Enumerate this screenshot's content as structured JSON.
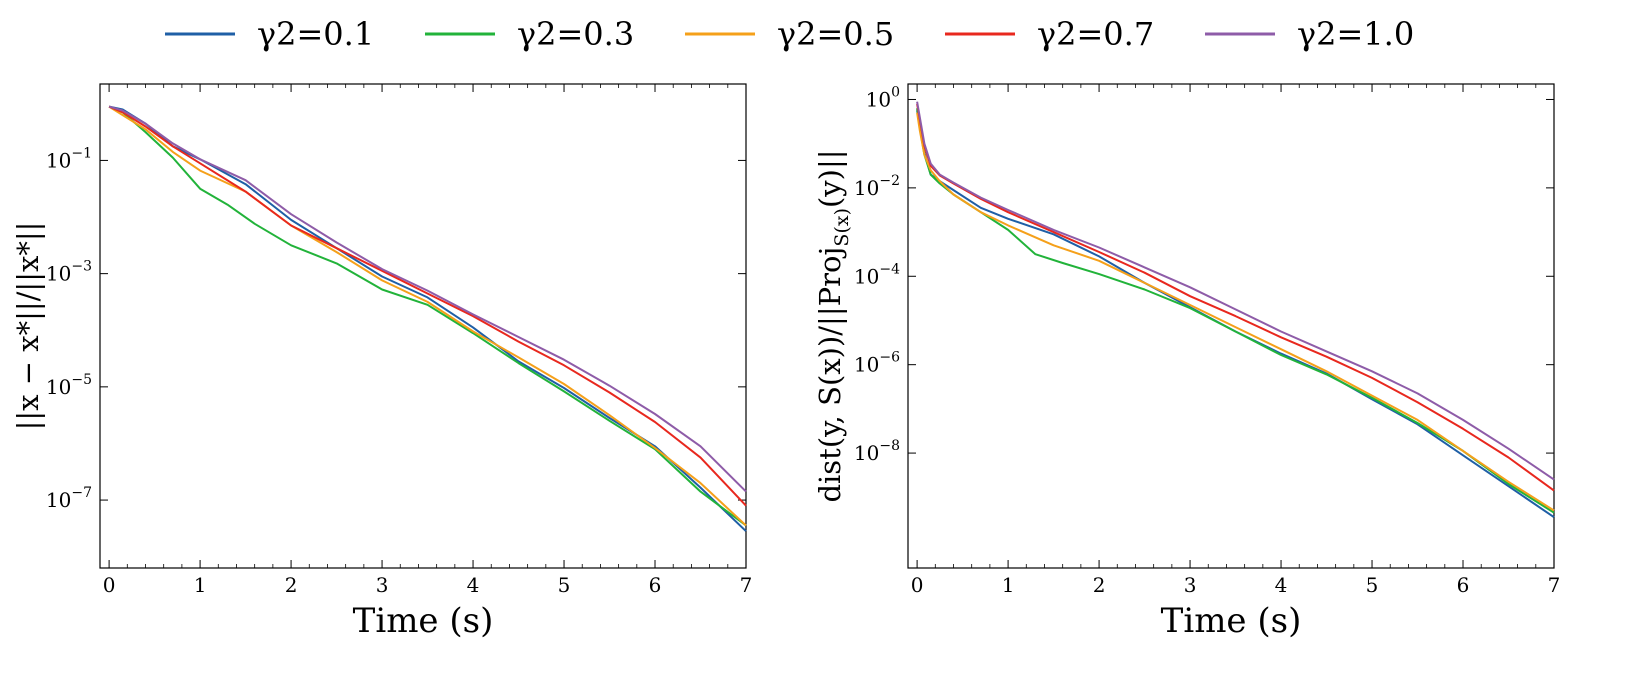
{
  "legend": {
    "entries": [
      {
        "label": "γ2=0.1",
        "color": "#1f5fa6"
      },
      {
        "label": "γ2=0.3",
        "color": "#22b33a"
      },
      {
        "label": "γ2=0.5",
        "color": "#f5a01a"
      },
      {
        "label": "γ2=0.7",
        "color": "#e8281e"
      },
      {
        "label": "γ2=1.0",
        "color": "#8e5ca8"
      }
    ]
  },
  "chart_data": [
    {
      "type": "line",
      "xlabel": "Time (s)",
      "ylabel": "||x − x*||/||x*||",
      "yscale": "log",
      "xlim": [
        -0.1,
        7
      ],
      "ylim_log10": [
        -8.2,
        0.35
      ],
      "xticks": [
        0,
        1,
        2,
        3,
        4,
        5,
        6,
        7
      ],
      "yticks": [
        {
          "exp": -1,
          "label": "10",
          "sup": "−1"
        },
        {
          "exp": -3,
          "label": "10",
          "sup": "−3"
        },
        {
          "exp": -5,
          "label": "10",
          "sup": "−5"
        },
        {
          "exp": -7,
          "label": "10",
          "sup": "−7"
        }
      ],
      "series": [
        {
          "name": "γ2=0.1",
          "x": [
            0,
            0.15,
            0.4,
            0.7,
            1.0,
            1.5,
            2.0,
            2.5,
            3.0,
            3.5,
            4.0,
            4.5,
            5.0,
            5.5,
            6.0,
            6.5,
            7.0
          ],
          "log10_y": [
            -0.05,
            -0.1,
            -0.35,
            -0.75,
            -0.98,
            -1.42,
            -2.05,
            -2.55,
            -3.05,
            -3.42,
            -3.95,
            -4.55,
            -5.02,
            -5.55,
            -6.05,
            -6.78,
            -7.55
          ]
        },
        {
          "name": "γ2=0.3",
          "x": [
            0,
            0.15,
            0.4,
            0.7,
            1.0,
            1.3,
            1.6,
            2.0,
            2.5,
            3.0,
            3.5,
            4.0,
            4.5,
            5.0,
            5.5,
            6.0,
            6.5,
            7.0
          ],
          "log10_y": [
            -0.05,
            -0.15,
            -0.5,
            -0.95,
            -1.5,
            -1.78,
            -2.12,
            -2.5,
            -2.82,
            -3.28,
            -3.55,
            -4.05,
            -4.58,
            -5.08,
            -5.6,
            -6.1,
            -6.85,
            -7.45
          ]
        },
        {
          "name": "γ2=0.5",
          "x": [
            0,
            0.15,
            0.4,
            0.7,
            1.0,
            1.5,
            2.0,
            2.5,
            3.0,
            3.5,
            4.0,
            4.5,
            5.0,
            5.5,
            6.0,
            6.5,
            7.0
          ],
          "log10_y": [
            -0.05,
            -0.2,
            -0.45,
            -0.85,
            -1.18,
            -1.55,
            -2.15,
            -2.62,
            -3.12,
            -3.5,
            -4.02,
            -4.48,
            -4.95,
            -5.5,
            -6.08,
            -6.7,
            -7.45
          ]
        },
        {
          "name": "γ2=0.7",
          "x": [
            0,
            0.15,
            0.4,
            0.7,
            1.0,
            1.5,
            2.0,
            2.5,
            3.0,
            3.5,
            4.0,
            4.5,
            5.0,
            5.5,
            6.0,
            6.5,
            7.0
          ],
          "log10_y": [
            -0.05,
            -0.15,
            -0.4,
            -0.75,
            -1.05,
            -1.55,
            -2.15,
            -2.55,
            -2.95,
            -3.35,
            -3.75,
            -4.2,
            -4.62,
            -5.1,
            -5.62,
            -6.25,
            -7.1
          ]
        },
        {
          "name": "γ2=1.0",
          "x": [
            0,
            0.15,
            0.4,
            0.7,
            1.0,
            1.5,
            2.0,
            2.5,
            3.0,
            3.5,
            4.0,
            4.5,
            5.0,
            5.5,
            6.0,
            6.5,
            7.0
          ],
          "log10_y": [
            -0.05,
            -0.12,
            -0.35,
            -0.7,
            -0.98,
            -1.35,
            -1.95,
            -2.45,
            -2.92,
            -3.3,
            -3.72,
            -4.12,
            -4.52,
            -4.98,
            -5.48,
            -6.05,
            -6.85
          ]
        }
      ]
    },
    {
      "type": "line",
      "xlabel": "Time (s)",
      "ylabel": "dist(y, S(x))/||Proj",
      "ylabel_sub": "S(x)",
      "ylabel_tail": "(y)||",
      "yscale": "log",
      "xlim": [
        -0.1,
        7
      ],
      "ylim_log10": [
        -10.6,
        0.35
      ],
      "xticks": [
        0,
        1,
        2,
        3,
        4,
        5,
        6,
        7
      ],
      "yticks": [
        {
          "exp": 0,
          "label": "10",
          "sup": "0"
        },
        {
          "exp": -2,
          "label": "10",
          "sup": "−2"
        },
        {
          "exp": -4,
          "label": "10",
          "sup": "−4"
        },
        {
          "exp": -6,
          "label": "10",
          "sup": "−6"
        },
        {
          "exp": -8,
          "label": "10",
          "sup": "−8"
        }
      ],
      "series": [
        {
          "name": "γ2=0.1",
          "x": [
            0,
            0.03,
            0.08,
            0.15,
            0.25,
            0.4,
            0.7,
            1.0,
            1.5,
            2.0,
            2.5,
            3.0,
            3.5,
            4.0,
            4.5,
            5.0,
            5.5,
            6.0,
            6.5,
            7.0
          ],
          "log10_y": [
            -0.25,
            -0.6,
            -1.2,
            -1.7,
            -1.85,
            -2.05,
            -2.45,
            -2.7,
            -3.05,
            -3.55,
            -4.15,
            -4.7,
            -5.25,
            -5.75,
            -6.2,
            -6.78,
            -7.35,
            -8.05,
            -8.75,
            -9.45
          ]
        },
        {
          "name": "γ2=0.3",
          "x": [
            0,
            0.03,
            0.08,
            0.15,
            0.25,
            0.4,
            0.7,
            1.0,
            1.3,
            1.6,
            2.0,
            2.5,
            3.0,
            3.5,
            4.0,
            4.5,
            5.0,
            5.5,
            6.0,
            6.5,
            7.0
          ],
          "log10_y": [
            -0.2,
            -0.65,
            -1.25,
            -1.7,
            -1.9,
            -2.15,
            -2.55,
            -2.95,
            -3.5,
            -3.7,
            -3.95,
            -4.3,
            -4.72,
            -5.25,
            -5.78,
            -6.22,
            -6.75,
            -7.32,
            -7.95,
            -8.7,
            -9.35
          ]
        },
        {
          "name": "γ2=0.5",
          "x": [
            0,
            0.03,
            0.08,
            0.15,
            0.25,
            0.4,
            0.7,
            1.0,
            1.5,
            2.0,
            2.5,
            3.0,
            3.5,
            4.0,
            4.5,
            5.0,
            5.5,
            6.0,
            6.5,
            7.0
          ],
          "log10_y": [
            -0.3,
            -0.7,
            -1.25,
            -1.6,
            -1.85,
            -2.15,
            -2.55,
            -2.85,
            -3.3,
            -3.65,
            -4.15,
            -4.65,
            -5.15,
            -5.65,
            -6.15,
            -6.7,
            -7.25,
            -7.95,
            -8.65,
            -9.3
          ]
        },
        {
          "name": "γ2=0.7",
          "x": [
            0,
            0.03,
            0.08,
            0.15,
            0.25,
            0.4,
            0.7,
            1.0,
            1.5,
            2.0,
            2.5,
            3.0,
            3.5,
            4.0,
            4.5,
            5.0,
            5.5,
            6.0,
            6.5,
            7.0
          ],
          "log10_y": [
            -0.1,
            -0.45,
            -1.05,
            -1.5,
            -1.72,
            -1.9,
            -2.25,
            -2.55,
            -3.0,
            -3.45,
            -3.92,
            -4.45,
            -4.9,
            -5.38,
            -5.82,
            -6.3,
            -6.85,
            -7.45,
            -8.1,
            -8.85
          ]
        },
        {
          "name": "γ2=1.0",
          "x": [
            0,
            0.03,
            0.08,
            0.15,
            0.25,
            0.4,
            0.7,
            1.0,
            1.5,
            2.0,
            2.5,
            3.0,
            3.5,
            4.0,
            4.5,
            5.0,
            5.5,
            6.0,
            6.5,
            7.0
          ],
          "log10_y": [
            -0.05,
            -0.4,
            -1.0,
            -1.45,
            -1.7,
            -1.88,
            -2.22,
            -2.5,
            -2.95,
            -3.35,
            -3.8,
            -4.25,
            -4.75,
            -5.25,
            -5.7,
            -6.15,
            -6.65,
            -7.25,
            -7.9,
            -8.6
          ]
        }
      ]
    }
  ]
}
